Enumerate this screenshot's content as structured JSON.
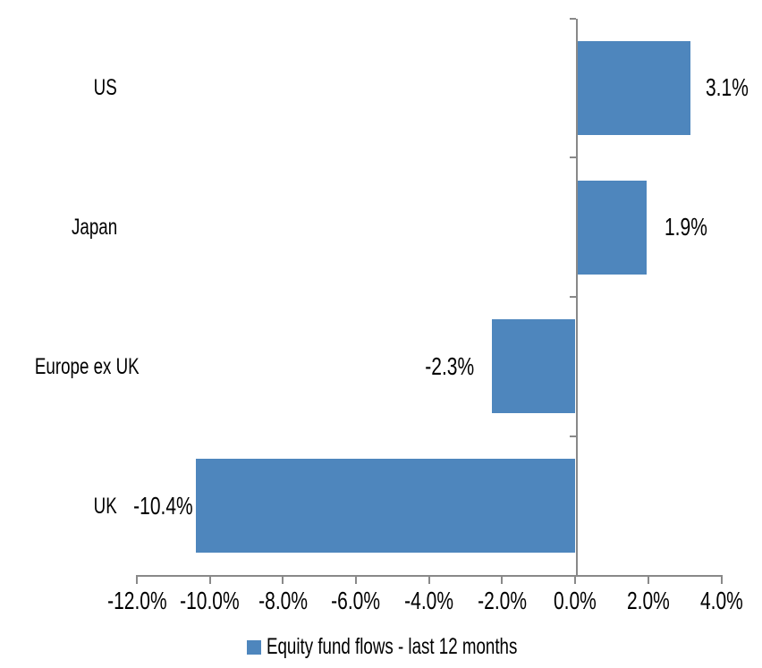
{
  "chart_data": {
    "type": "bar",
    "orientation": "horizontal",
    "title": "",
    "categories": [
      "US",
      "Japan",
      "Europe ex UK",
      "UK"
    ],
    "series": [
      {
        "name": "Equity fund flows - last 12 months",
        "values": [
          3.1,
          1.9,
          -2.3,
          -10.4
        ],
        "value_labels": [
          "3.1%",
          "1.9%",
          "-2.3%",
          "-10.4%"
        ]
      }
    ],
    "xlim": [
      -12,
      4
    ],
    "x_tick_step": 2,
    "x_tick_labels": [
      "-12.0%",
      "-10.0%",
      "-8.0%",
      "-6.0%",
      "-4.0%",
      "-2.0%",
      "0.0%",
      "2.0%",
      "4.0%"
    ],
    "grid": false,
    "legend_position": "bottom",
    "legend": {
      "label": "Equity fund flows - last 12 months"
    },
    "colors": {
      "bar": "#4e86bd",
      "axis": "#898989",
      "text": "#000000",
      "background": "#ffffff"
    }
  }
}
